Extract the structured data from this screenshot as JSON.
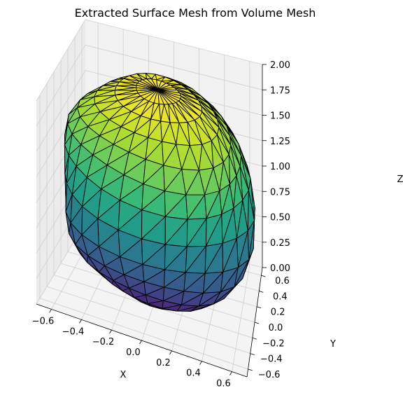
{
  "chart_data": {
    "type": "surface3d",
    "title": "Extracted Surface Mesh from Volume Mesh",
    "xlabel": "X",
    "ylabel": "Y",
    "zlabel": "Z",
    "xticks": [
      "−0.6",
      "−0.4",
      "−0.2",
      "0.0",
      "0.2",
      "0.4",
      "0.6"
    ],
    "yticks": [
      "−0.6",
      "−0.4",
      "−0.2",
      "0.0",
      "0.2",
      "0.4",
      "0.6"
    ],
    "zticks": [
      "0.00",
      "0.25",
      "0.50",
      "0.75",
      "1.00",
      "1.25",
      "1.50",
      "1.75",
      "2.00"
    ],
    "xlim": [
      -0.7,
      0.7
    ],
    "ylim": [
      -0.7,
      0.7
    ],
    "zlim": [
      0,
      2
    ],
    "grid": true,
    "colormap": "viridis",
    "edge_color": "#000000",
    "pane_color": "#f2f2f2",
    "surface": {
      "shape": "closed triangulated mesh (ellipsoid-like blob)",
      "center": [
        0.0,
        0.0,
        1.0
      ],
      "z_range": [
        0.0,
        2.0
      ],
      "max_radius": 0.7
    }
  }
}
